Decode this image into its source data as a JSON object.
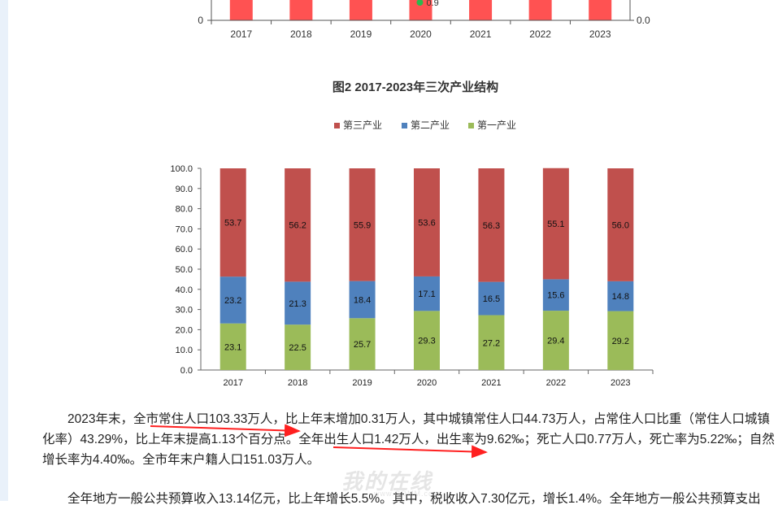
{
  "top_chart": {
    "categories": [
      "2017",
      "2018",
      "2019",
      "2020",
      "2021",
      "2022",
      "2023"
    ],
    "y_left_label": "0",
    "y_right_label": "0.0",
    "point_label": "0.9",
    "colors": {
      "bar": "#ff5252",
      "point": "#2db84d"
    }
  },
  "figure2": {
    "title": "图2 2017-2023年三次产业结构"
  },
  "chart_data": {
    "type": "bar",
    "stacked": true,
    "title": "图2 2017-2023年三次产业结构",
    "categories": [
      "2017",
      "2018",
      "2019",
      "2020",
      "2021",
      "2022",
      "2023"
    ],
    "series": [
      {
        "name": "第一产业",
        "color": "#9bbb59",
        "values": [
          23.1,
          22.5,
          25.7,
          29.3,
          27.2,
          29.4,
          29.2
        ]
      },
      {
        "name": "第二产业",
        "color": "#4f81bd",
        "values": [
          23.2,
          21.3,
          18.4,
          17.1,
          16.5,
          15.6,
          14.8
        ]
      },
      {
        "name": "第三产业",
        "color": "#c0504d",
        "values": [
          53.7,
          56.2,
          55.9,
          53.6,
          56.3,
          55.1,
          56.0
        ]
      }
    ],
    "legend": [
      "第三产业",
      "第二产业",
      "第一产业"
    ],
    "legend_position": "top",
    "ylim": [
      0,
      100
    ],
    "yticks": [
      "0.0",
      "10.0",
      "20.0",
      "30.0",
      "40.0",
      "50.0",
      "60.0",
      "70.0",
      "80.0",
      "90.0",
      "100.0"
    ],
    "grid": false
  },
  "paragraphs": {
    "p1": "2023年末，全市常住人口103.33万人，比上年末增加0.31万人，其中城镇常住人口44.73万人，占常住人口比重（常住人口城镇化率）43.29%，比上年末提高1.13个百分点。全年出生人口1.42万人，出生率为9.62‰；死亡人口0.77万人，死亡率为5.22‰；自然增长率为4.40‰。全市年末户籍人口151.03万人。",
    "p2": "全年地方一般公共预算收入13.14亿元，比上年增长5.5%。其中，税收收入7.30亿元，增长1.4%。全年地方一般公共预算支出"
  },
  "watermark": {
    "main": "我的在线",
    "sub": "www.GDMM.com"
  }
}
